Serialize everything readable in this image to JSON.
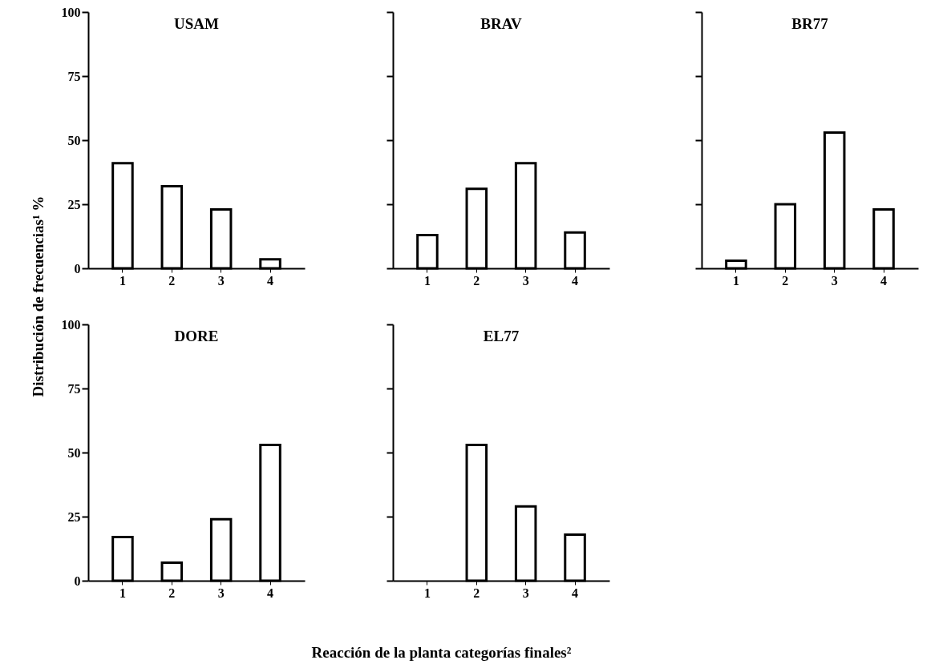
{
  "chart_data": [
    {
      "type": "bar",
      "title": "USAM",
      "categories": [
        "1",
        "2",
        "3",
        "4"
      ],
      "values": [
        41,
        32,
        23,
        3.5
      ],
      "color": "#ffffff",
      "ylim": [
        0,
        100
      ],
      "yticks": [
        0,
        25,
        50,
        75,
        100
      ]
    },
    {
      "type": "bar",
      "title": "BRAV",
      "categories": [
        "1",
        "2",
        "3",
        "4"
      ],
      "values": [
        13,
        31,
        41,
        14
      ],
      "color": "#ffffff",
      "ylim": [
        0,
        100
      ],
      "yticks": [
        0,
        25,
        50,
        75,
        100
      ],
      "tick_labels": "x"
    },
    {
      "type": "bar",
      "title": "BR77",
      "categories": [
        "1",
        "2",
        "3",
        "4"
      ],
      "values": [
        3,
        25,
        53,
        23
      ],
      "color": "#ffffff",
      "ylim": [
        0,
        100
      ],
      "yticks": [
        0,
        25,
        50,
        75,
        100
      ],
      "tick_labels": "x"
    },
    {
      "type": "bar",
      "title": "DORE",
      "ylabel": "Distribución de frecuencias¹ %",
      "categories": [
        "1",
        "2",
        "3",
        "4"
      ],
      "values": [
        17,
        7,
        24,
        53
      ],
      "color": "#ffffff",
      "ylim": [
        0,
        100
      ],
      "yticks": [
        0,
        25,
        50,
        75,
        100
      ]
    },
    {
      "type": "bar",
      "title": "EL77",
      "xlabel": "Reacción de la planta  categorías finales²",
      "categories": [
        "1",
        "2",
        "3",
        "4"
      ],
      "values": [
        0,
        53,
        29,
        18
      ],
      "color": "#ffffff",
      "ylim": [
        0,
        100
      ],
      "yticks": [
        0,
        25,
        50,
        75,
        100
      ],
      "tick_labels": "x"
    }
  ]
}
